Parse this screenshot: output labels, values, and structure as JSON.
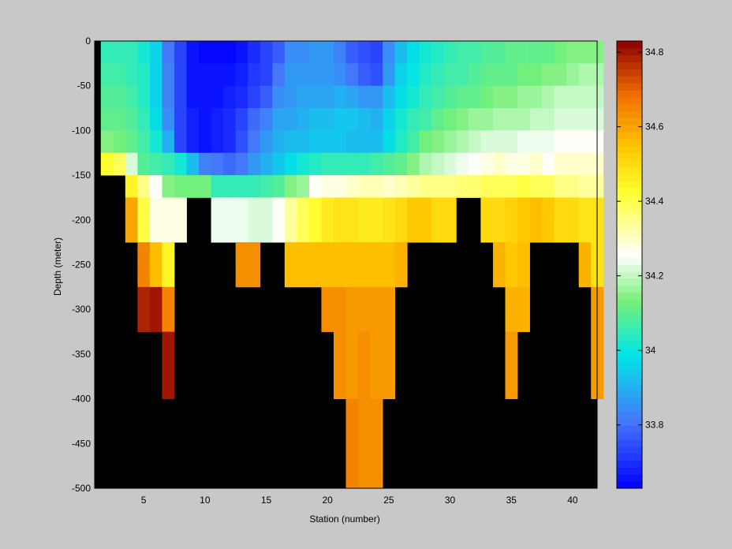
{
  "chart_data": {
    "type": "heatmap",
    "xlabel": "Station (number)",
    "ylabel": "Depth (meter)",
    "x_ticks": [
      5,
      10,
      15,
      20,
      25,
      30,
      35,
      40
    ],
    "y_ticks": [
      0,
      -50,
      -100,
      -150,
      -200,
      -250,
      -300,
      -350,
      -400,
      -450,
      -500
    ],
    "xlim": [
      1,
      42
    ],
    "ylim": [
      -500,
      0
    ],
    "colorbar": {
      "range": [
        33.63,
        34.83
      ],
      "ticks": [
        33.8,
        34,
        34.2,
        34.4,
        34.6,
        34.8
      ],
      "colormap": "jet-with-white-center",
      "levels": 64
    },
    "missing_color": "#000000",
    "stations": [
      2,
      3,
      4,
      5,
      6,
      7,
      8,
      9,
      10,
      11,
      12,
      13,
      14,
      15,
      16,
      17,
      18,
      19,
      20,
      21,
      22,
      23,
      24,
      25,
      26,
      27,
      28,
      29,
      30,
      31,
      32,
      33,
      34,
      35,
      36,
      37,
      38,
      39,
      40,
      41,
      42
    ],
    "depths": [
      0,
      -25,
      -50,
      -75,
      -100,
      -125,
      -150,
      -175,
      -200,
      -225,
      -250,
      -275,
      -300,
      -325,
      -350,
      -375,
      -400,
      -425,
      -450,
      -475
    ],
    "salinity": [
      [
        34.06,
        34.06,
        34.05,
        34.02,
        33.95,
        33.8,
        33.73,
        33.65,
        33.64,
        33.64,
        33.64,
        33.66,
        33.7,
        33.73,
        33.78,
        33.85,
        33.85,
        33.86,
        33.86,
        33.83,
        33.78,
        33.76,
        33.74,
        33.84,
        33.92,
        33.97,
        34.02,
        34.03,
        34.05,
        34.07,
        34.08,
        34.09,
        34.09,
        34.1,
        34.1,
        34.11,
        34.11,
        34.12,
        34.14,
        34.15,
        34.15
      ],
      [
        34.08,
        34.07,
        34.06,
        34.03,
        33.96,
        33.82,
        33.74,
        33.66,
        33.65,
        33.65,
        33.65,
        33.67,
        33.71,
        33.74,
        33.8,
        33.86,
        33.86,
        33.87,
        33.87,
        33.85,
        33.8,
        33.78,
        33.76,
        33.87,
        33.95,
        33.99,
        34.04,
        34.05,
        34.07,
        34.08,
        34.09,
        34.1,
        34.1,
        34.11,
        34.12,
        34.13,
        34.14,
        34.15,
        34.17,
        34.18,
        34.18
      ],
      [
        34.09,
        34.09,
        34.08,
        34.03,
        33.96,
        33.83,
        33.73,
        33.66,
        33.65,
        33.66,
        33.67,
        33.7,
        33.74,
        33.78,
        33.84,
        33.86,
        33.88,
        33.88,
        33.89,
        33.9,
        33.88,
        33.86,
        33.86,
        33.92,
        33.98,
        34.01,
        34.05,
        34.07,
        34.09,
        34.1,
        34.11,
        34.13,
        34.14,
        34.15,
        34.16,
        34.17,
        34.18,
        34.2,
        34.21,
        34.21,
        34.21
      ],
      [
        34.11,
        34.11,
        34.09,
        34.05,
        33.98,
        33.85,
        33.73,
        33.67,
        33.66,
        33.67,
        33.69,
        33.73,
        33.79,
        33.83,
        33.88,
        33.89,
        33.91,
        33.92,
        33.93,
        33.94,
        33.94,
        33.92,
        33.91,
        33.96,
        34.01,
        34.05,
        34.08,
        34.1,
        34.12,
        34.14,
        34.16,
        34.17,
        34.18,
        34.18,
        34.19,
        34.2,
        34.21,
        34.22,
        34.23,
        34.23,
        34.23
      ],
      [
        34.15,
        34.13,
        34.11,
        34.08,
        34.02,
        33.9,
        33.74,
        33.67,
        33.66,
        33.67,
        33.69,
        33.75,
        33.81,
        33.86,
        33.9,
        33.92,
        33.93,
        33.94,
        33.94,
        33.94,
        33.93,
        33.92,
        33.93,
        33.98,
        34.03,
        34.08,
        34.12,
        34.15,
        34.17,
        34.18,
        34.2,
        34.22,
        34.22,
        34.23,
        34.24,
        34.24,
        34.24,
        34.25,
        34.25,
        34.25,
        34.25
      ],
      [
        34.42,
        34.39,
        34.22,
        34.09,
        34.07,
        34.06,
        34.02,
        33.93,
        33.82,
        33.8,
        33.79,
        33.8,
        33.86,
        33.91,
        33.94,
        33.98,
        34.01,
        34.03,
        34.05,
        34.05,
        34.06,
        34.06,
        34.07,
        34.09,
        34.11,
        34.15,
        34.18,
        34.2,
        34.22,
        34.24,
        34.26,
        34.27,
        34.29,
        34.27,
        34.27,
        34.29,
        34.26,
        34.29,
        34.3,
        34.3,
        34.3
      ],
      [
        null,
        null,
        34.45,
        34.35,
        34.25,
        34.14,
        34.12,
        34.12,
        34.12,
        34.06,
        34.05,
        34.06,
        34.06,
        34.07,
        34.09,
        34.14,
        34.17,
        34.25,
        34.27,
        34.28,
        34.3,
        34.31,
        34.31,
        34.3,
        34.32,
        34.34,
        34.35,
        34.35,
        34.36,
        34.37,
        34.37,
        34.38,
        34.38,
        34.38,
        34.4,
        34.39,
        34.38,
        34.36,
        34.36,
        34.33,
        34.33
      ],
      [
        null,
        null,
        34.59,
        34.4,
        34.28,
        34.27,
        34.27,
        null,
        null,
        34.24,
        34.24,
        34.24,
        34.22,
        34.22,
        34.26,
        34.33,
        34.38,
        34.43,
        34.46,
        34.48,
        34.48,
        34.47,
        34.46,
        34.48,
        34.5,
        34.54,
        34.54,
        34.51,
        34.5,
        null,
        null,
        34.51,
        34.51,
        34.52,
        34.53,
        34.55,
        34.54,
        34.51,
        34.5,
        34.48,
        34.48
      ],
      [
        null,
        null,
        34.59,
        34.4,
        34.28,
        34.27,
        34.27,
        null,
        null,
        34.24,
        34.24,
        34.24,
        34.22,
        34.22,
        34.26,
        34.33,
        34.38,
        34.43,
        34.46,
        34.48,
        34.48,
        34.47,
        34.46,
        34.48,
        34.5,
        34.54,
        34.54,
        34.51,
        34.5,
        null,
        null,
        34.51,
        34.51,
        34.52,
        34.53,
        34.55,
        34.54,
        34.51,
        34.5,
        34.48,
        34.48
      ],
      [
        null,
        null,
        null,
        34.65,
        34.56,
        34.45,
        null,
        null,
        null,
        null,
        null,
        34.63,
        34.63,
        null,
        null,
        34.56,
        34.56,
        34.56,
        34.55,
        34.55,
        34.55,
        34.55,
        34.55,
        34.55,
        34.58,
        null,
        null,
        null,
        null,
        null,
        null,
        null,
        34.58,
        34.54,
        34.56,
        null,
        null,
        null,
        null,
        34.57,
        34.48
      ],
      [
        null,
        null,
        null,
        34.65,
        34.56,
        34.45,
        null,
        null,
        null,
        null,
        null,
        34.63,
        34.63,
        null,
        null,
        34.56,
        34.56,
        34.56,
        34.55,
        34.55,
        34.55,
        34.55,
        34.55,
        34.55,
        34.58,
        null,
        null,
        null,
        null,
        null,
        null,
        null,
        34.58,
        34.54,
        34.56,
        null,
        null,
        null,
        null,
        34.57,
        34.48
      ],
      [
        null,
        null,
        null,
        34.79,
        34.8,
        34.65,
        null,
        null,
        null,
        null,
        null,
        null,
        null,
        null,
        null,
        null,
        null,
        null,
        34.63,
        34.63,
        34.62,
        34.62,
        34.62,
        34.61,
        null,
        null,
        null,
        null,
        null,
        null,
        null,
        null,
        null,
        34.58,
        34.57,
        null,
        null,
        null,
        null,
        null,
        34.61
      ],
      [
        null,
        null,
        null,
        34.79,
        34.8,
        34.65,
        null,
        null,
        null,
        null,
        null,
        null,
        null,
        null,
        null,
        null,
        null,
        null,
        34.63,
        34.63,
        34.62,
        34.62,
        34.62,
        34.61,
        null,
        null,
        null,
        null,
        null,
        null,
        null,
        null,
        null,
        34.58,
        34.57,
        null,
        null,
        null,
        null,
        null,
        34.61
      ],
      [
        null,
        null,
        null,
        null,
        null,
        34.8,
        null,
        null,
        null,
        null,
        null,
        null,
        null,
        null,
        null,
        null,
        null,
        null,
        null,
        34.63,
        34.62,
        34.64,
        34.62,
        34.61,
        null,
        null,
        null,
        null,
        null,
        null,
        null,
        null,
        null,
        34.61,
        null,
        null,
        null,
        null,
        null,
        null,
        34.61
      ],
      [
        null,
        null,
        null,
        null,
        null,
        34.8,
        null,
        null,
        null,
        null,
        null,
        null,
        null,
        null,
        null,
        null,
        null,
        null,
        null,
        34.63,
        34.62,
        34.64,
        34.62,
        34.61,
        null,
        null,
        null,
        null,
        null,
        null,
        null,
        null,
        null,
        34.61,
        null,
        null,
        null,
        null,
        null,
        null,
        34.61
      ],
      [
        null,
        null,
        null,
        null,
        null,
        34.8,
        null,
        null,
        null,
        null,
        null,
        null,
        null,
        null,
        null,
        null,
        null,
        null,
        null,
        34.63,
        34.62,
        34.64,
        34.62,
        34.61,
        null,
        null,
        null,
        null,
        null,
        null,
        null,
        null,
        null,
        34.61,
        null,
        null,
        null,
        null,
        null,
        null,
        34.61
      ],
      [
        null,
        null,
        null,
        null,
        null,
        null,
        null,
        null,
        null,
        null,
        null,
        null,
        null,
        null,
        null,
        null,
        null,
        null,
        null,
        null,
        34.66,
        34.63,
        34.63,
        null,
        null,
        null,
        null,
        null,
        null,
        null,
        null,
        null,
        null,
        null,
        null,
        null,
        null,
        null,
        null,
        null,
        null
      ],
      [
        null,
        null,
        null,
        null,
        null,
        null,
        null,
        null,
        null,
        null,
        null,
        null,
        null,
        null,
        null,
        null,
        null,
        null,
        null,
        null,
        34.66,
        34.63,
        34.63,
        null,
        null,
        null,
        null,
        null,
        null,
        null,
        null,
        null,
        null,
        null,
        null,
        null,
        null,
        null,
        null,
        null,
        null
      ],
      [
        null,
        null,
        null,
        null,
        null,
        null,
        null,
        null,
        null,
        null,
        null,
        null,
        null,
        null,
        null,
        null,
        null,
        null,
        null,
        null,
        34.66,
        34.63,
        34.63,
        null,
        null,
        null,
        null,
        null,
        null,
        null,
        null,
        null,
        null,
        null,
        null,
        null,
        null,
        null,
        null,
        null,
        null
      ],
      [
        null,
        null,
        null,
        null,
        null,
        null,
        null,
        null,
        null,
        null,
        null,
        null,
        null,
        null,
        null,
        null,
        null,
        null,
        null,
        null,
        34.66,
        34.63,
        34.63,
        null,
        null,
        null,
        null,
        null,
        null,
        null,
        null,
        null,
        null,
        null,
        null,
        null,
        null,
        null,
        null,
        null,
        null
      ]
    ]
  }
}
